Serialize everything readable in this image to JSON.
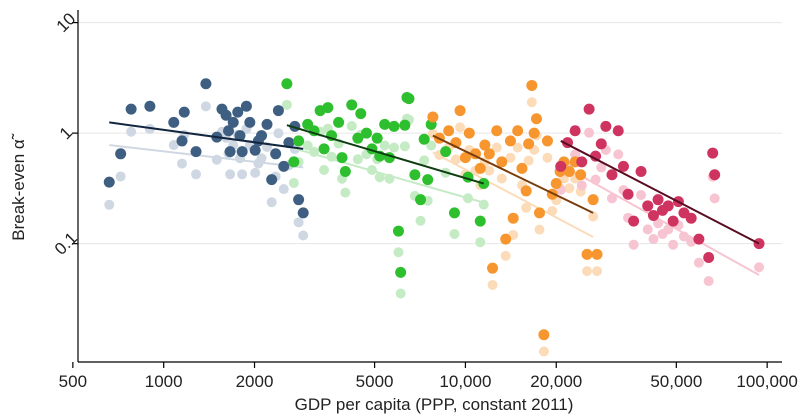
{
  "chart_data": {
    "type": "scatter",
    "title": "",
    "xlabel": "GDP per capita (PPP, constant 2011)",
    "ylabel": "Break-even α̃",
    "x_scale": "log",
    "y_scale": "log",
    "xlim": [
      520,
      112000
    ],
    "ylim": [
      0.0085,
      13
    ],
    "x_ticks": [
      500,
      1000,
      2000,
      5000,
      10000,
      20000,
      50000,
      100000
    ],
    "x_tick_labels": [
      "500",
      "1000",
      "2000",
      "5000",
      "10,000",
      "20,000",
      "50,000",
      "100,000"
    ],
    "y_ticks": [
      0.1,
      1,
      10
    ],
    "y_tick_labels": [
      "0.1",
      "1",
      "10"
    ],
    "grid": "horizontal",
    "legend": "none",
    "series": [
      {
        "color": "#3f5f82",
        "light_color": "#cfd8e2",
        "points": [
          [
            660,
            0.36
          ],
          [
            720,
            0.65
          ],
          [
            780,
            1.65
          ],
          [
            900,
            1.75
          ],
          [
            1080,
            1.25
          ],
          [
            1150,
            0.85
          ],
          [
            1170,
            1.55
          ],
          [
            1280,
            0.68
          ],
          [
            1380,
            2.8
          ],
          [
            1500,
            0.92
          ],
          [
            1560,
            1.65
          ],
          [
            1610,
            1.45
          ],
          [
            1640,
            1.05
          ],
          [
            1660,
            0.68
          ],
          [
            1700,
            1.25
          ],
          [
            1760,
            1.55
          ],
          [
            1790,
            0.95
          ],
          [
            1820,
            0.68
          ],
          [
            1880,
            1.75
          ],
          [
            1930,
            1.25
          ],
          [
            2010,
            0.7
          ],
          [
            2060,
            0.85
          ],
          [
            2110,
            0.95
          ],
          [
            2200,
            1.2
          ],
          [
            2280,
            0.38
          ],
          [
            2350,
            0.65
          ],
          [
            2400,
            1.6
          ],
          [
            2500,
            0.5
          ],
          [
            2600,
            0.82
          ],
          [
            2720,
            1.15
          ],
          [
            2800,
            0.25
          ],
          [
            2900,
            0.19
          ]
        ],
        "trend": [
          [
            660,
            1.25
          ],
          [
            2900,
            0.72
          ]
        ],
        "trend_light": [
          [
            660,
            0.78
          ],
          [
            2900,
            0.49
          ]
        ]
      },
      {
        "color": "#2ebf2e",
        "light_color": "#c4ebc4",
        "points": [
          [
            2560,
            2.8
          ],
          [
            2700,
            0.55
          ],
          [
            2800,
            0.85
          ],
          [
            3000,
            1.2
          ],
          [
            3150,
            1.05
          ],
          [
            3300,
            1.6
          ],
          [
            3400,
            0.72
          ],
          [
            3500,
            1.7
          ],
          [
            3600,
            0.95
          ],
          [
            3800,
            1.25
          ],
          [
            3900,
            0.6
          ],
          [
            4000,
            0.45
          ],
          [
            4200,
            1.8
          ],
          [
            4400,
            0.9
          ],
          [
            4500,
            1.5
          ],
          [
            4700,
            1.0
          ],
          [
            4900,
            0.72
          ],
          [
            5100,
            0.9
          ],
          [
            5200,
            0.62
          ],
          [
            5400,
            1.2
          ],
          [
            5600,
            0.6
          ],
          [
            5800,
            1.15
          ],
          [
            6000,
            0.13
          ],
          [
            6100,
            0.055
          ],
          [
            6300,
            1.18
          ],
          [
            6400,
            2.1
          ],
          [
            6500,
            2.05
          ],
          [
            6800,
            0.42
          ],
          [
            7100,
            0.25
          ],
          [
            7300,
            0.88
          ],
          [
            7500,
            0.38
          ],
          [
            7700,
            1.2
          ],
          [
            8600,
            0.68
          ],
          [
            9200,
            0.19
          ],
          [
            10200,
            0.4
          ],
          [
            11200,
            0.16
          ],
          [
            11500,
            0.35
          ]
        ],
        "trend": [
          [
            2560,
            1.18
          ],
          [
            11500,
            0.35
          ]
        ],
        "trend_light": [
          [
            2560,
            0.76
          ],
          [
            11500,
            0.235
          ]
        ]
      },
      {
        "color": "#f7962e",
        "light_color": "#fcdcb8",
        "points": [
          [
            7800,
            1.4
          ],
          [
            8200,
            0.9
          ],
          [
            8800,
            1.05
          ],
          [
            9300,
            0.82
          ],
          [
            9600,
            1.6
          ],
          [
            10000,
            0.6
          ],
          [
            10300,
            1.0
          ],
          [
            10800,
            0.65
          ],
          [
            11200,
            0.48
          ],
          [
            11600,
            0.78
          ],
          [
            12000,
            0.65
          ],
          [
            12300,
            0.06
          ],
          [
            12700,
            1.05
          ],
          [
            13200,
            0.55
          ],
          [
            13600,
            0.11
          ],
          [
            14100,
            0.85
          ],
          [
            14400,
            0.17
          ],
          [
            14900,
            1.05
          ],
          [
            15400,
            0.48
          ],
          [
            15900,
            0.3
          ],
          [
            16200,
            0.8
          ],
          [
            16600,
            2.7
          ],
          [
            16900,
            1.0
          ],
          [
            17200,
            1.35
          ],
          [
            17600,
            0.19
          ],
          [
            18200,
            0.015
          ],
          [
            18700,
            0.85
          ],
          [
            19400,
            0.28
          ],
          [
            20000,
            0.35
          ],
          [
            20600,
            0.45
          ],
          [
            21200,
            0.55
          ],
          [
            22100,
            0.45
          ],
          [
            23100,
            0.55
          ],
          [
            24100,
            0.42
          ],
          [
            25300,
            0.08
          ],
          [
            26500,
            0.25
          ],
          [
            27300,
            0.08
          ]
        ],
        "trend": [
          [
            7800,
            0.95
          ],
          [
            26500,
            0.19
          ]
        ],
        "trend_light": [
          [
            7800,
            0.67
          ],
          [
            26500,
            0.115
          ]
        ]
      },
      {
        "color": "#cf3460",
        "light_color": "#f7c4d1",
        "points": [
          [
            20700,
            0.5
          ],
          [
            21800,
            0.82
          ],
          [
            23100,
            1.05
          ],
          [
            24300,
            0.55
          ],
          [
            25700,
            1.65
          ],
          [
            27000,
            0.62
          ],
          [
            28200,
            0.8
          ],
          [
            29200,
            1.15
          ],
          [
            30600,
            0.42
          ],
          [
            32100,
            1.05
          ],
          [
            33400,
            0.5
          ],
          [
            34600,
            0.28
          ],
          [
            36100,
            0.16
          ],
          [
            38200,
            0.45
          ],
          [
            40200,
            0.22
          ],
          [
            42000,
            0.18
          ],
          [
            43500,
            0.25
          ],
          [
            45000,
            0.2
          ],
          [
            47000,
            0.22
          ],
          [
            48800,
            0.16
          ],
          [
            50800,
            0.24
          ],
          [
            53000,
            0.19
          ],
          [
            56000,
            0.17
          ],
          [
            59400,
            0.11
          ],
          [
            64000,
            0.075
          ],
          [
            66000,
            0.66
          ],
          [
            67000,
            0.42
          ],
          [
            94000,
            0.1
          ]
        ],
        "trend": [
          [
            20700,
            0.85
          ],
          [
            94000,
            0.1
          ]
        ],
        "trend_light": [
          [
            20700,
            0.52
          ],
          [
            94000,
            0.052
          ]
        ]
      }
    ]
  }
}
